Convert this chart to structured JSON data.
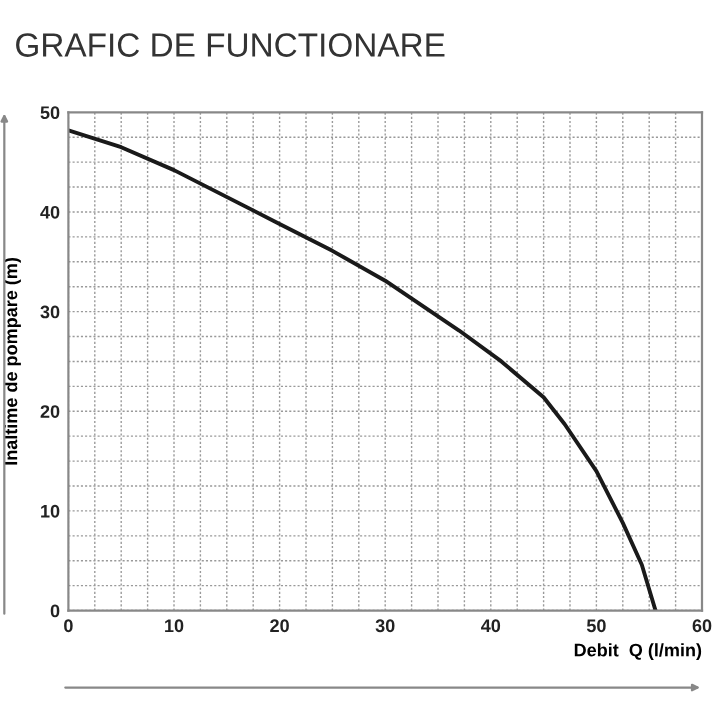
{
  "chart_data": {
    "type": "line",
    "title": "GRAFIC DE FUNCTIONARE",
    "xlabel": "Debit  Q (l/min)",
    "ylabel": "Inaltime de pompare (m)",
    "series": [
      {
        "color": "#1a1a1a",
        "x": [
          0,
          5,
          10,
          20,
          25,
          30,
          37,
          41,
          45,
          47,
          50,
          52.5,
          54.3,
          55.6
        ],
        "values": [
          48.2,
          46.5,
          44.2,
          38.8,
          36.1,
          33.1,
          28.1,
          25,
          21.4,
          18.7,
          14,
          8.8,
          4.6,
          0
        ]
      }
    ],
    "xlim": [
      0,
      60
    ],
    "xticks": [
      0,
      10,
      20,
      30,
      40,
      50,
      60
    ],
    "ylim": [
      0,
      50
    ],
    "yticks": [
      0,
      10,
      20,
      30,
      40,
      50
    ],
    "grid": true
  }
}
